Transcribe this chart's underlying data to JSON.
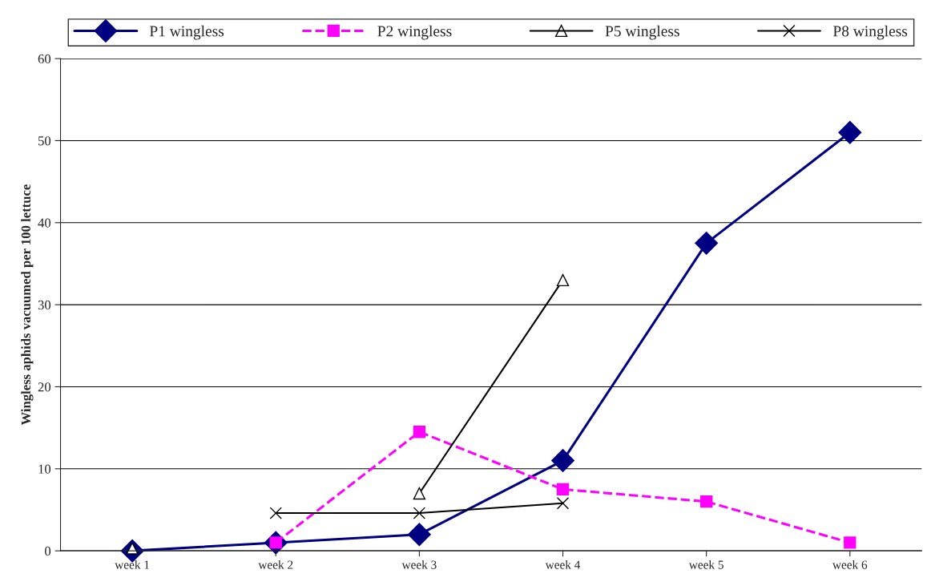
{
  "chart_data": {
    "type": "line",
    "ylabel": "Wingless aphids vacuumed per 100 lettuce",
    "categories": [
      "week 1",
      "week 2",
      "week 3",
      "week 4",
      "week 5",
      "week 6"
    ],
    "series": [
      {
        "name": "P1 wingless",
        "color": "#000080",
        "marker": "diamond",
        "line_style": "solid",
        "values": [
          0,
          1,
          2,
          11,
          37.5,
          51
        ]
      },
      {
        "name": "P2 wingless",
        "color": "#ff00ff",
        "marker": "square",
        "line_style": "dashed",
        "values": [
          null,
          1,
          14.5,
          7.5,
          6,
          1
        ]
      },
      {
        "name": "P5 wingless",
        "color": "#000000",
        "marker": "triangle",
        "line_style": "solid",
        "values": [
          0.3,
          null,
          7,
          33,
          null,
          null
        ]
      },
      {
        "name": "P8 wingless",
        "color": "#000000",
        "marker": "cross",
        "line_style": "solid",
        "values": [
          null,
          4.6,
          4.6,
          5.8,
          null,
          null
        ]
      }
    ],
    "ylim": [
      0,
      60
    ],
    "yticks": [
      0,
      10,
      20,
      30,
      40,
      50,
      60
    ],
    "grid": "y",
    "legend": "top"
  }
}
